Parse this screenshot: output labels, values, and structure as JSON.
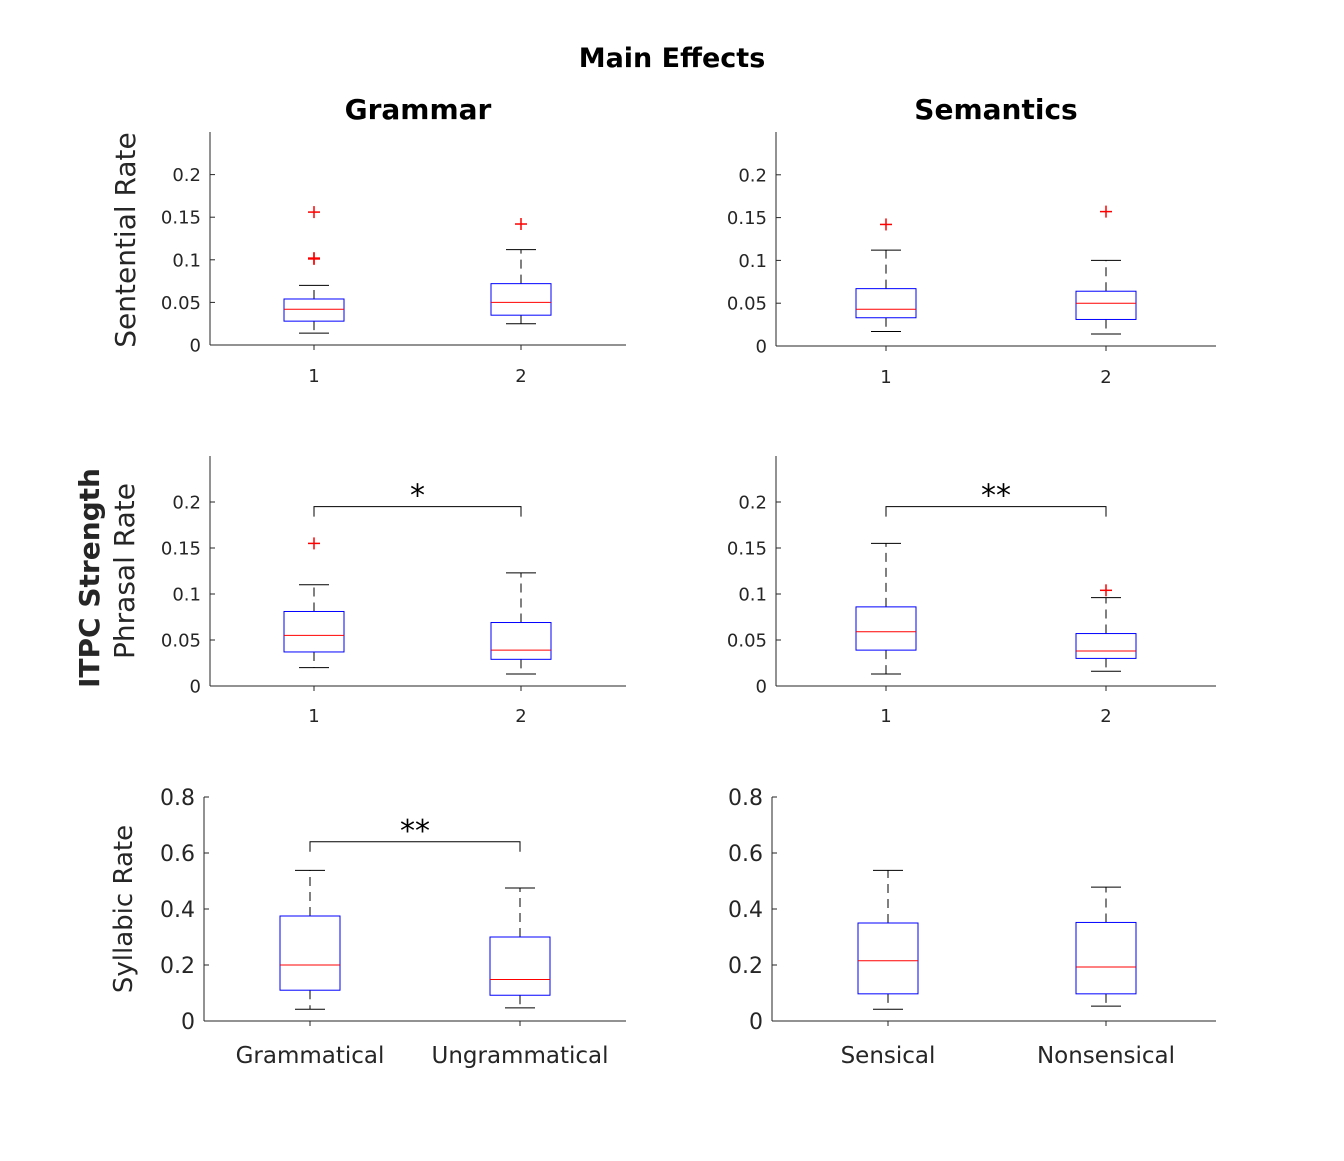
{
  "figure": {
    "title": "Main Effects",
    "column_titles": [
      "Grammar",
      "Semantics"
    ],
    "row_group_label": "ITPC Strength",
    "row_labels": [
      "Sentential Rate",
      "Phrasal Rate",
      "Syllabic Rate"
    ]
  },
  "chart_data": [
    {
      "type": "box",
      "row_label": "Sentential Rate",
      "column_title": "Grammar",
      "categories": [
        "1",
        "2"
      ],
      "ylim": [
        0,
        0.25
      ],
      "yticks": [
        0,
        0.05,
        0.1,
        0.15,
        0.2
      ],
      "ytick_labels": [
        "0",
        "0.05",
        "0.1",
        "0.15",
        "0.2"
      ],
      "boxes": [
        {
          "whisker_low": 0.014,
          "q1": 0.028,
          "median": 0.042,
          "q3": 0.054,
          "whisker_high": 0.07,
          "outliers": [
            0.156,
            0.101,
            0.102
          ]
        },
        {
          "whisker_low": 0.025,
          "q1": 0.035,
          "median": 0.05,
          "q3": 0.072,
          "whisker_high": 0.112,
          "outliers": [
            0.142
          ]
        }
      ],
      "significance": null
    },
    {
      "type": "box",
      "row_label": "Sentential Rate",
      "column_title": "Semantics",
      "categories": [
        "1",
        "2"
      ],
      "ylim": [
        0,
        0.25
      ],
      "yticks": [
        0,
        0.05,
        0.1,
        0.15,
        0.2
      ],
      "ytick_labels": [
        "0",
        "0.05",
        "0.1",
        "0.15",
        "0.2"
      ],
      "boxes": [
        {
          "whisker_low": 0.017,
          "q1": 0.033,
          "median": 0.043,
          "q3": 0.067,
          "whisker_high": 0.112,
          "outliers": [
            0.142
          ]
        },
        {
          "whisker_low": 0.014,
          "q1": 0.031,
          "median": 0.05,
          "q3": 0.064,
          "whisker_high": 0.1,
          "outliers": [
            0.157
          ]
        }
      ],
      "significance": null
    },
    {
      "type": "box",
      "row_label": "Phrasal Rate",
      "column_title": "Grammar",
      "categories": [
        "1",
        "2"
      ],
      "ylim": [
        0,
        0.25
      ],
      "yticks": [
        0,
        0.05,
        0.1,
        0.15,
        0.2
      ],
      "ytick_labels": [
        "0",
        "0.05",
        "0.1",
        "0.15",
        "0.2"
      ],
      "boxes": [
        {
          "whisker_low": 0.02,
          "q1": 0.037,
          "median": 0.055,
          "q3": 0.081,
          "whisker_high": 0.11,
          "outliers": [
            0.155
          ]
        },
        {
          "whisker_low": 0.013,
          "q1": 0.029,
          "median": 0.039,
          "q3": 0.069,
          "whisker_high": 0.123,
          "outliers": []
        }
      ],
      "significance": {
        "label": "*",
        "y": 0.195
      }
    },
    {
      "type": "box",
      "row_label": "Phrasal Rate",
      "column_title": "Semantics",
      "categories": [
        "1",
        "2"
      ],
      "ylim": [
        0,
        0.25
      ],
      "yticks": [
        0,
        0.05,
        0.1,
        0.15,
        0.2
      ],
      "ytick_labels": [
        "0",
        "0.05",
        "0.1",
        "0.15",
        "0.2"
      ],
      "boxes": [
        {
          "whisker_low": 0.013,
          "q1": 0.039,
          "median": 0.059,
          "q3": 0.086,
          "whisker_high": 0.155,
          "outliers": []
        },
        {
          "whisker_low": 0.016,
          "q1": 0.03,
          "median": 0.038,
          "q3": 0.057,
          "whisker_high": 0.096,
          "outliers": [
            0.104
          ]
        }
      ],
      "significance": {
        "label": "**",
        "y": 0.195
      }
    },
    {
      "type": "box",
      "row_label": "Syllabic Rate",
      "column_title": "Grammar",
      "categories": [
        "Grammatical",
        "Ungrammatical"
      ],
      "ylim": [
        0,
        0.8
      ],
      "yticks": [
        0,
        0.2,
        0.4,
        0.6,
        0.8
      ],
      "ytick_labels": [
        "0",
        "0.2",
        "0.4",
        "0.6",
        "0.8"
      ],
      "boxes": [
        {
          "whisker_low": 0.042,
          "q1": 0.11,
          "median": 0.2,
          "q3": 0.375,
          "whisker_high": 0.538,
          "outliers": []
        },
        {
          "whisker_low": 0.047,
          "q1": 0.092,
          "median": 0.148,
          "q3": 0.3,
          "whisker_high": 0.475,
          "outliers": []
        }
      ],
      "significance": {
        "label": "**",
        "y": 0.64
      }
    },
    {
      "type": "box",
      "row_label": "Syllabic Rate",
      "column_title": "Semantics",
      "categories": [
        "Sensical",
        "Nonsensical"
      ],
      "ylim": [
        0,
        0.8
      ],
      "yticks": [
        0,
        0.2,
        0.4,
        0.6,
        0.8
      ],
      "ytick_labels": [
        "0",
        "0.2",
        "0.4",
        "0.6",
        "0.8"
      ],
      "boxes": [
        {
          "whisker_low": 0.042,
          "q1": 0.097,
          "median": 0.215,
          "q3": 0.35,
          "whisker_high": 0.538,
          "outliers": []
        },
        {
          "whisker_low": 0.053,
          "q1": 0.097,
          "median": 0.193,
          "q3": 0.352,
          "whisker_high": 0.478,
          "outliers": []
        }
      ],
      "significance": null
    }
  ],
  "colors": {
    "box": "#0000ff",
    "median": "#ff0000",
    "outlier": "#ff0000",
    "axis": "#262626",
    "whisker": "#000000"
  }
}
